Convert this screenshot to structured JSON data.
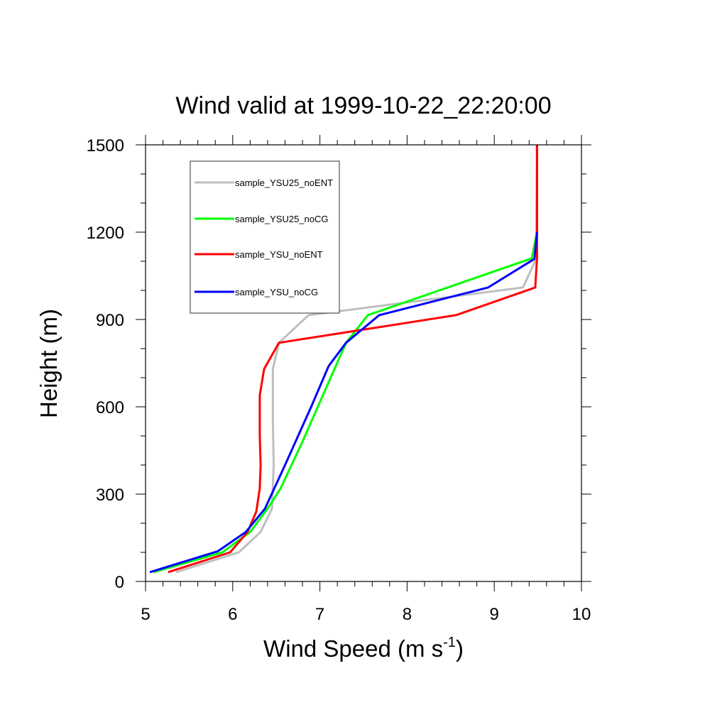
{
  "chart_data": {
    "type": "line",
    "title": "Wind valid at 1999-10-22_22:20:00",
    "xlabel": "Wind Speed (m s",
    "xlabel_sup": "-1",
    "xlabel_end": ")",
    "ylabel": "Height (m)",
    "xlim": [
      5,
      10
    ],
    "ylim": [
      0,
      1500
    ],
    "xticks": [
      5,
      6,
      7,
      8,
      9,
      10
    ],
    "xtick_labels": [
      "5",
      "6",
      "7",
      "8",
      "9",
      "10"
    ],
    "yticks": [
      0,
      300,
      600,
      900,
      1200,
      1500
    ],
    "ytick_labels": [
      "0",
      "300",
      "600",
      "900",
      "1200",
      "1500"
    ],
    "legend_position": "top-left",
    "grid": false,
    "series": [
      {
        "name": "sample_YSU25_noENT",
        "color": "#bebebe",
        "points": [
          [
            5.35,
            32
          ],
          [
            6.07,
            100
          ],
          [
            6.32,
            170
          ],
          [
            6.45,
            250
          ],
          [
            6.47,
            400
          ],
          [
            6.46,
            560
          ],
          [
            6.46,
            730
          ],
          [
            6.53,
            820
          ],
          [
            6.87,
            915
          ],
          [
            9.33,
            1010
          ],
          [
            9.48,
            1108
          ],
          [
            9.49,
            1500
          ]
        ]
      },
      {
        "name": "sample_YSU25_noCG",
        "color": "#00ff00",
        "points": [
          [
            5.09,
            32
          ],
          [
            5.88,
            100
          ],
          [
            6.2,
            170
          ],
          [
            6.4,
            250
          ],
          [
            6.55,
            320
          ],
          [
            6.8,
            480
          ],
          [
            7.05,
            650
          ],
          [
            7.3,
            820
          ],
          [
            7.55,
            915
          ],
          [
            9.43,
            1110
          ],
          [
            9.49,
            1200
          ],
          [
            9.49,
            1500
          ]
        ]
      },
      {
        "name": "sample_YSU_noENT",
        "color": "#ff0000",
        "points": [
          [
            5.26,
            32
          ],
          [
            5.97,
            100
          ],
          [
            6.17,
            170
          ],
          [
            6.27,
            240
          ],
          [
            6.31,
            320
          ],
          [
            6.32,
            400
          ],
          [
            6.31,
            500
          ],
          [
            6.31,
            640
          ],
          [
            6.36,
            730
          ],
          [
            6.53,
            820
          ],
          [
            8.56,
            915
          ],
          [
            9.47,
            1010
          ],
          [
            9.49,
            1110
          ],
          [
            9.49,
            1500
          ]
        ]
      },
      {
        "name": "sample_YSU_noCG",
        "color": "#0000ff",
        "points": [
          [
            5.05,
            32
          ],
          [
            5.83,
            104
          ],
          [
            6.15,
            170
          ],
          [
            6.37,
            250
          ],
          [
            6.6,
            400
          ],
          [
            6.9,
            600
          ],
          [
            7.1,
            740
          ],
          [
            7.3,
            820
          ],
          [
            7.68,
            915
          ],
          [
            8.93,
            1010
          ],
          [
            9.46,
            1108
          ],
          [
            9.49,
            1200
          ]
        ]
      }
    ]
  }
}
